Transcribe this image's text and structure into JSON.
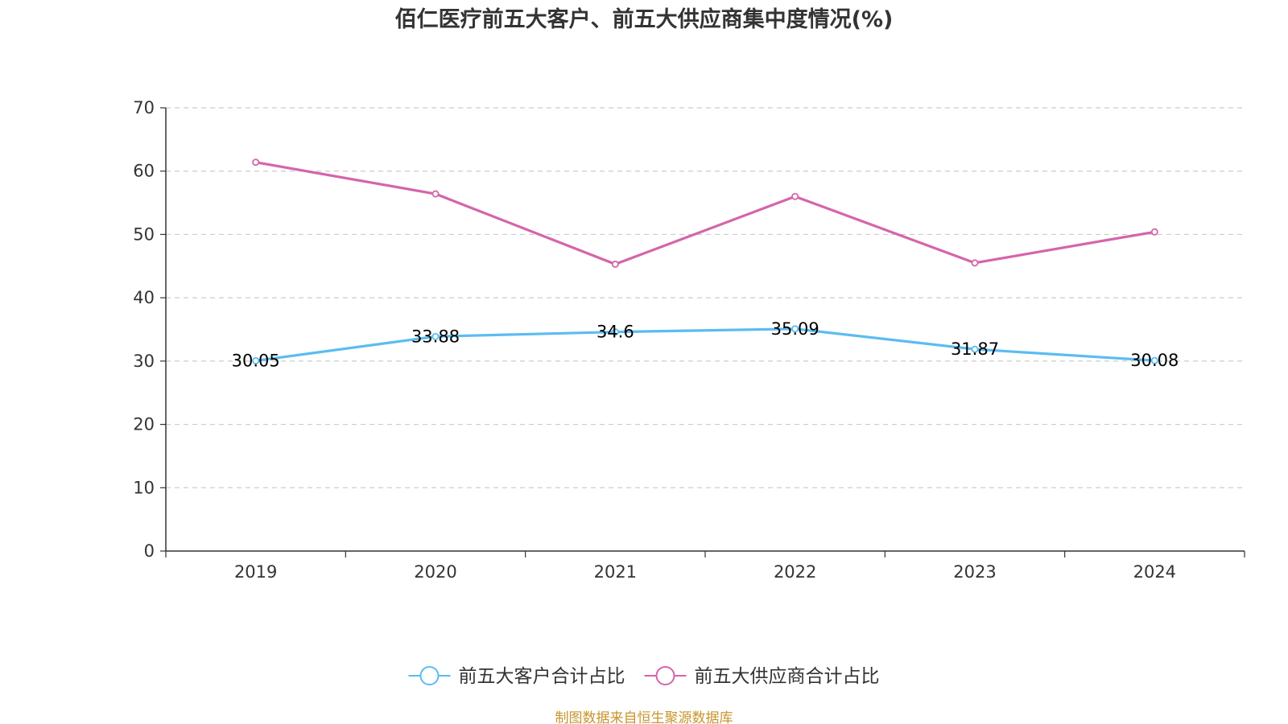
{
  "chart_data": {
    "type": "line",
    "title": "佰仁医疗前五大客户、前五大供应商集中度情况(%)",
    "categories": [
      "2019",
      "2020",
      "2021",
      "2022",
      "2023",
      "2024"
    ],
    "series": [
      {
        "name": "前五大客户合计占比",
        "color": "#5bbcf0",
        "values": [
          30.05,
          33.88,
          34.6,
          35.09,
          31.87,
          30.08
        ],
        "show_labels": true
      },
      {
        "name": "前五大供应商合计占比",
        "color": "#d465aa",
        "values": [
          61.4,
          56.4,
          45.3,
          56.0,
          45.5,
          50.4
        ],
        "show_labels": false
      }
    ],
    "ylim": [
      0,
      70
    ],
    "yticks": [
      "0",
      "10",
      "20",
      "30",
      "40",
      "50",
      "60",
      "70"
    ],
    "grid": true,
    "legend_position": "bottom-center",
    "source": "制图数据来自恒生聚源数据库"
  }
}
